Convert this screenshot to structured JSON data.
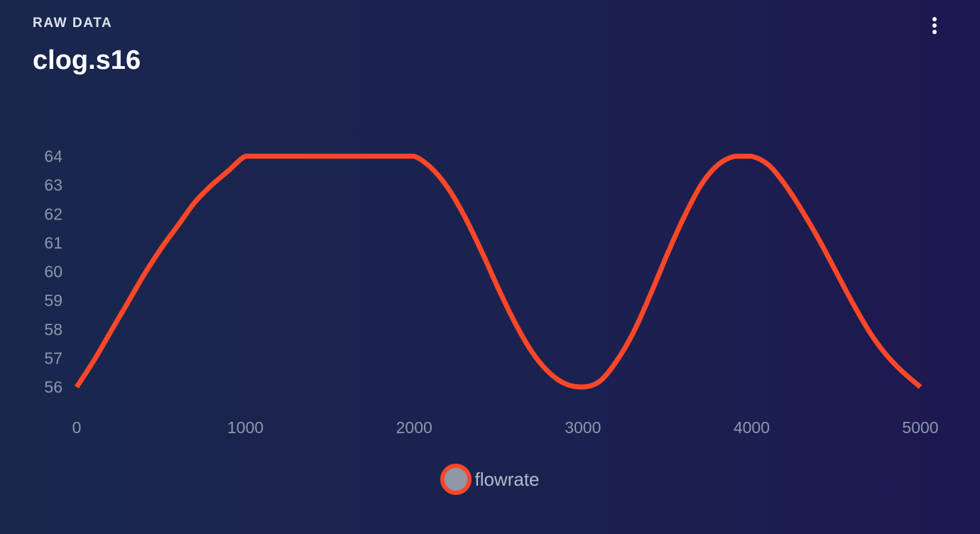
{
  "header": {
    "eyebrow": "RAW DATA",
    "title": "clog.s16",
    "menu_icon": "more-vertical-icon"
  },
  "colors": {
    "series": "#ff4727",
    "legend_fill": "#8f98a8",
    "tick_text": "#8d98ad"
  },
  "chart_data": {
    "type": "line",
    "x": [
      0,
      100,
      200,
      300,
      400,
      500,
      600,
      700,
      800,
      900,
      1000,
      1100,
      1200,
      1300,
      1400,
      1500,
      1600,
      1700,
      1800,
      1900,
      2000,
      2100,
      2200,
      2300,
      2400,
      2500,
      2600,
      2700,
      2800,
      2900,
      3000,
      3100,
      3200,
      3300,
      3400,
      3500,
      3600,
      3700,
      3800,
      3900,
      4000,
      4100,
      4200,
      4300,
      4400,
      4500,
      4600,
      4700,
      4800,
      4900,
      5000
    ],
    "series": [
      {
        "name": "flowrate",
        "values": [
          56.0,
          56.9,
          57.9,
          58.9,
          59.9,
          60.8,
          61.6,
          62.4,
          63.0,
          63.5,
          64.0,
          64.0,
          64.0,
          64.0,
          64.0,
          64.0,
          64.0,
          64.0,
          64.0,
          64.0,
          64.0,
          63.6,
          62.9,
          61.9,
          60.7,
          59.4,
          58.2,
          57.2,
          56.5,
          56.1,
          56.0,
          56.2,
          56.9,
          57.9,
          59.2,
          60.6,
          61.9,
          63.0,
          63.7,
          64.0,
          64.0,
          63.7,
          63.0,
          62.1,
          61.1,
          60.0,
          58.9,
          57.9,
          57.1,
          56.5,
          56.0
        ]
      }
    ],
    "x_ticks": [
      "0",
      "1000",
      "2000",
      "3000",
      "4000",
      "5000"
    ],
    "y_ticks": [
      "56",
      "57",
      "58",
      "59",
      "60",
      "61",
      "62",
      "63",
      "64"
    ],
    "xlim": [
      0,
      5000
    ],
    "ylim": [
      56,
      64
    ],
    "grid": false,
    "legend_position": "bottom-center"
  }
}
